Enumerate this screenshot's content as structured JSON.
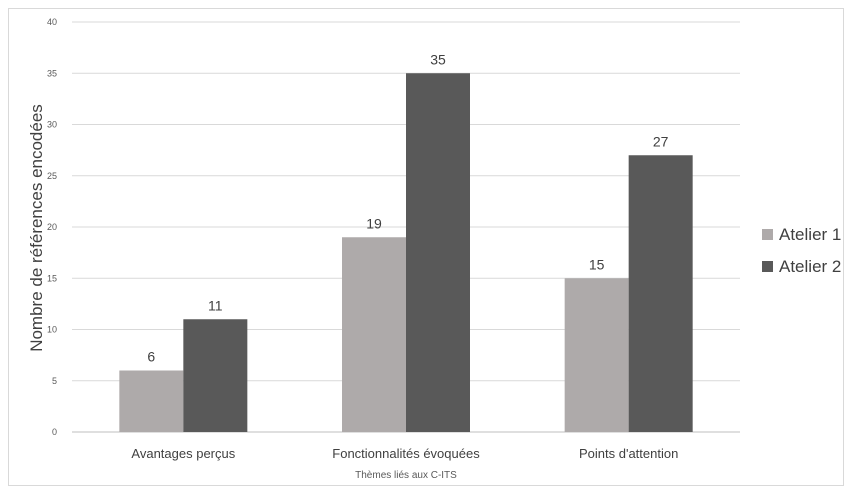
{
  "chart_data": {
    "type": "bar",
    "categories": [
      "Avantages perçus",
      "Fonctionnalités évoquées",
      "Points d'attention"
    ],
    "series": [
      {
        "name": "Atelier 1",
        "values": [
          6,
          19,
          15
        ],
        "color": "#aeaaaa"
      },
      {
        "name": "Atelier 2",
        "values": [
          11,
          35,
          27
        ],
        "color": "#595959"
      }
    ],
    "title": "",
    "xlabel": "Thèmes liés aux C-ITS",
    "ylabel": "Nombre de références encodées",
    "ylim": [
      0,
      40
    ],
    "yticks": [
      0,
      5,
      10,
      15,
      20,
      25,
      30,
      35,
      40
    ],
    "grid": true,
    "legend_position": "right",
    "data_labels": true
  }
}
